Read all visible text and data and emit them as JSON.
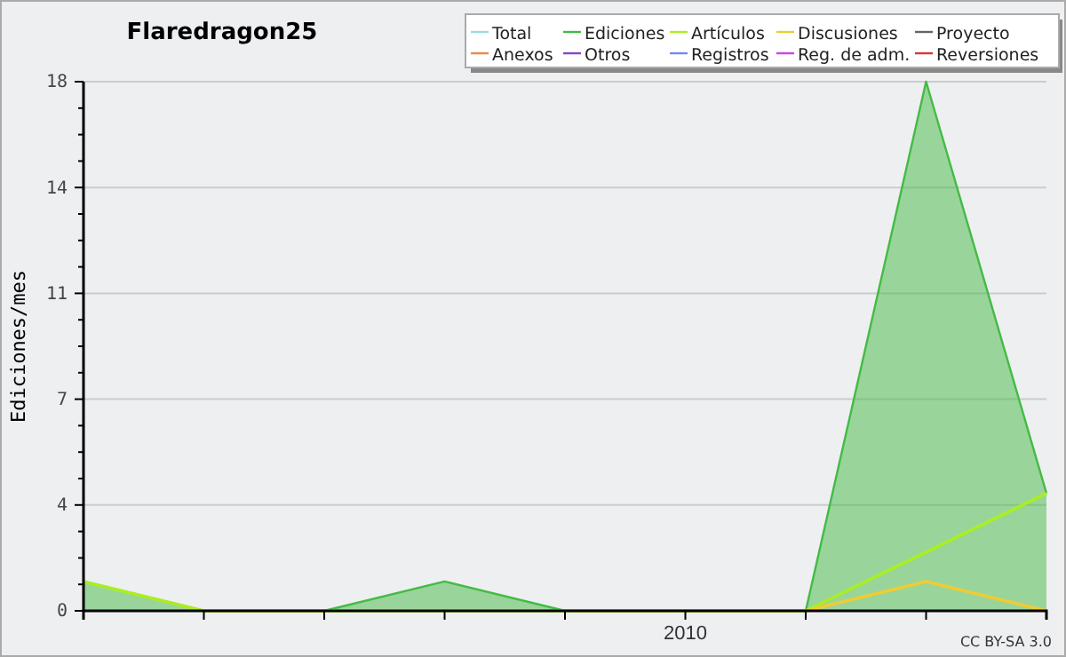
{
  "chart_data": {
    "type": "line",
    "title": "Flaredragon25",
    "ylabel": "Ediciones/mes",
    "categories": [
      null,
      null,
      null,
      null,
      null,
      "2010",
      null,
      null,
      null
    ],
    "ylim": [
      0,
      18
    ],
    "yticks": [
      0,
      {
        "value": 0.9,
        "label": null
      },
      {
        "value": 1.8,
        "label": null
      },
      {
        "value": 2.7,
        "label": null
      },
      {
        "value": 3.6,
        "label": "4"
      },
      {
        "value": 4.5,
        "label": null
      },
      {
        "value": 5.4,
        "label": null
      },
      {
        "value": 6.3,
        "label": null
      },
      {
        "value": 7.2,
        "label": "7"
      },
      {
        "value": 8.1,
        "label": null
      },
      {
        "value": 9,
        "label": null
      },
      {
        "value": 9.9,
        "label": null
      },
      {
        "value": 10.8,
        "label": "11"
      },
      {
        "value": 11.7,
        "label": null
      },
      {
        "value": 12.6,
        "label": null
      },
      {
        "value": 13.5,
        "label": null
      },
      {
        "value": 14.4,
        "label": "14"
      },
      {
        "value": 15.3,
        "label": null
      },
      {
        "value": 16.2,
        "label": null
      },
      {
        "value": 17.1,
        "label": null
      },
      18
    ],
    "grid": "y",
    "legend": "top right",
    "series": [
      {
        "name": "Total",
        "color": "#99dddd",
        "values": [
          null,
          null,
          null,
          null,
          null,
          null,
          null,
          null,
          null
        ]
      },
      {
        "name": "Ediciones",
        "color": "#44bb44",
        "type": "area",
        "values": [
          1,
          0,
          0,
          1,
          0,
          0,
          0,
          18,
          4
        ]
      },
      {
        "name": "Artículos",
        "color": "#aaee22",
        "values": [
          1,
          0,
          0,
          0,
          0,
          0,
          0,
          2,
          4
        ]
      },
      {
        "name": "Discusiones",
        "color": "#eecc33",
        "values": [
          null,
          null,
          null,
          null,
          null,
          null,
          0,
          1,
          0
        ]
      },
      {
        "name": "Proyecto",
        "color": "#666666",
        "values": [
          null,
          null,
          null,
          null,
          null,
          null,
          null,
          null,
          null
        ]
      },
      {
        "name": "Anexos",
        "color": "#ee8844",
        "values": [
          null,
          null,
          null,
          null,
          null,
          null,
          null,
          null,
          null
        ]
      },
      {
        "name": "Otros",
        "color": "#8844cc",
        "values": [
          null,
          null,
          null,
          null,
          null,
          null,
          null,
          null,
          null
        ]
      },
      {
        "name": "Registros",
        "color": "#7788ee",
        "values": [
          null,
          null,
          null,
          null,
          null,
          null,
          null,
          null,
          null
        ]
      },
      {
        "name": "Reg. de adm.",
        "color": "#cc44ee",
        "values": [
          null,
          null,
          null,
          null,
          null,
          null,
          null,
          null,
          null
        ]
      },
      {
        "name": "Reversiones",
        "color": "#dd3333",
        "values": [
          null,
          null,
          null,
          null,
          null,
          null,
          null,
          null,
          null
        ]
      }
    ],
    "annotations": [
      "CC BY-SA 3.0"
    ]
  }
}
